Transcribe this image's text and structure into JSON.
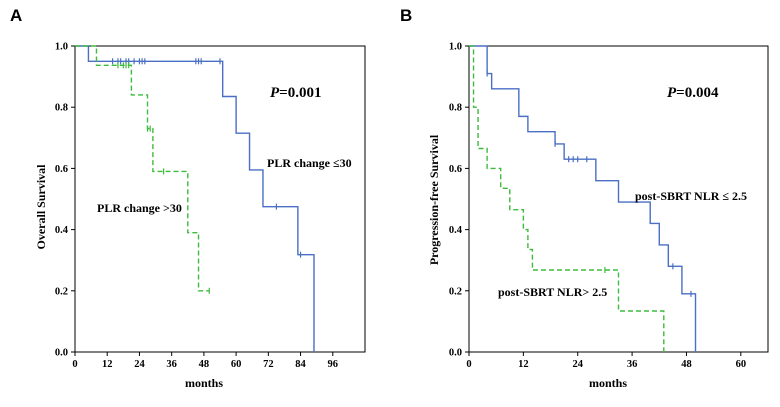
{
  "colors": {
    "blue": "#4a6fc4",
    "green": "#3dbb3d",
    "axis": "#000000"
  },
  "chart_data": [
    {
      "type": "line",
      "subtype": "kaplan-meier",
      "panel": "A",
      "xlabel": "months",
      "ylabel": "Overall Survival",
      "xlim": [
        0,
        108
      ],
      "ylim": [
        0,
        1.0
      ],
      "xticks": [
        "0",
        "12",
        "24",
        "36",
        "48",
        "60",
        "72",
        "84",
        "96"
      ],
      "yticks": [
        "0.0",
        "0.2",
        "0.4",
        "0.6",
        "0.8",
        "1.0"
      ],
      "pvalue_prefix": "P",
      "pvalue_text": "=0.001",
      "series": [
        {
          "name": "PLR change ≤30",
          "label": "PLR change ≤30",
          "color": "#4a6fc4",
          "dashed": false,
          "steps": [
            [
              0,
              1.0
            ],
            [
              5,
              0.95
            ],
            [
              55,
              0.835
            ],
            [
              60,
              0.715
            ],
            [
              65,
              0.595
            ],
            [
              70,
              0.475
            ],
            [
              83,
              0.318
            ],
            [
              89,
              0.0
            ]
          ],
          "censor": [
            [
              14,
              0.95
            ],
            [
              16,
              0.95
            ],
            [
              17,
              0.95
            ],
            [
              19,
              0.95
            ],
            [
              20,
              0.95
            ],
            [
              22,
              0.95
            ],
            [
              24,
              0.95
            ],
            [
              25,
              0.95
            ],
            [
              26,
              0.95
            ],
            [
              45,
              0.95
            ],
            [
              46,
              0.95
            ],
            [
              47,
              0.95
            ],
            [
              54,
              0.95
            ],
            [
              75,
              0.475
            ],
            [
              84,
              0.318
            ]
          ]
        },
        {
          "name": "PLR change >30",
          "label": "PLR change >30",
          "color": "#3dbb3d",
          "dashed": true,
          "steps": [
            [
              0,
              1.0
            ],
            [
              8,
              0.937
            ],
            [
              21,
              0.84
            ],
            [
              27,
              0.73
            ],
            [
              29,
              0.59
            ],
            [
              42,
              0.39
            ],
            [
              46,
              0.2
            ]
          ],
          "censor": [
            [
              16,
              0.937
            ],
            [
              18,
              0.937
            ],
            [
              19,
              0.937
            ],
            [
              20,
              0.937
            ],
            [
              27,
              0.73
            ],
            [
              28,
              0.73
            ],
            [
              33,
              0.59
            ],
            [
              50,
              0.2
            ]
          ],
          "line_end": 50
        }
      ]
    },
    {
      "type": "line",
      "subtype": "kaplan-meier",
      "panel": "B",
      "xlabel": "months",
      "ylabel": "Progression-free Survival",
      "xlim": [
        0,
        66
      ],
      "ylim": [
        0,
        1.0
      ],
      "xticks": [
        "0",
        "12",
        "24",
        "36",
        "48",
        "60"
      ],
      "yticks": [
        "0.0",
        "0.2",
        "0.4",
        "0.6",
        "0.8",
        "1.0"
      ],
      "pvalue_prefix": "P",
      "pvalue_text": "=0.004",
      "series": [
        {
          "name": "post-SBRT NLR ≤ 2.5",
          "label": "post-SBRT NLR ≤ 2.5",
          "color": "#4a6fc4",
          "dashed": false,
          "steps": [
            [
              0,
              1.0
            ],
            [
              4,
              0.91
            ],
            [
              5,
              0.86
            ],
            [
              11,
              0.77
            ],
            [
              13,
              0.72
            ],
            [
              19,
              0.68
            ],
            [
              21,
              0.63
            ],
            [
              28,
              0.56
            ],
            [
              33,
              0.49
            ],
            [
              40,
              0.42
            ],
            [
              42,
              0.35
            ],
            [
              44,
              0.28
            ],
            [
              47,
              0.19
            ],
            [
              50,
              0.0
            ]
          ],
          "censor": [
            [
              4,
              0.91
            ],
            [
              19,
              0.68
            ],
            [
              22,
              0.63
            ],
            [
              23,
              0.63
            ],
            [
              24,
              0.63
            ],
            [
              26,
              0.63
            ],
            [
              45,
              0.28
            ],
            [
              49,
              0.19
            ]
          ]
        },
        {
          "name": "post-SBRT NLR> 2.5",
          "label": "post-SBRT NLR> 2.5",
          "color": "#3dbb3d",
          "dashed": true,
          "steps": [
            [
              0,
              1.0
            ],
            [
              1,
              0.8
            ],
            [
              2,
              0.665
            ],
            [
              4,
              0.6
            ],
            [
              7,
              0.535
            ],
            [
              9,
              0.465
            ],
            [
              12,
              0.4
            ],
            [
              13,
              0.335
            ],
            [
              14,
              0.268
            ],
            [
              33,
              0.134
            ],
            [
              43,
              0.0
            ]
          ],
          "censor": [
            [
              30,
              0.268
            ]
          ]
        }
      ]
    }
  ]
}
